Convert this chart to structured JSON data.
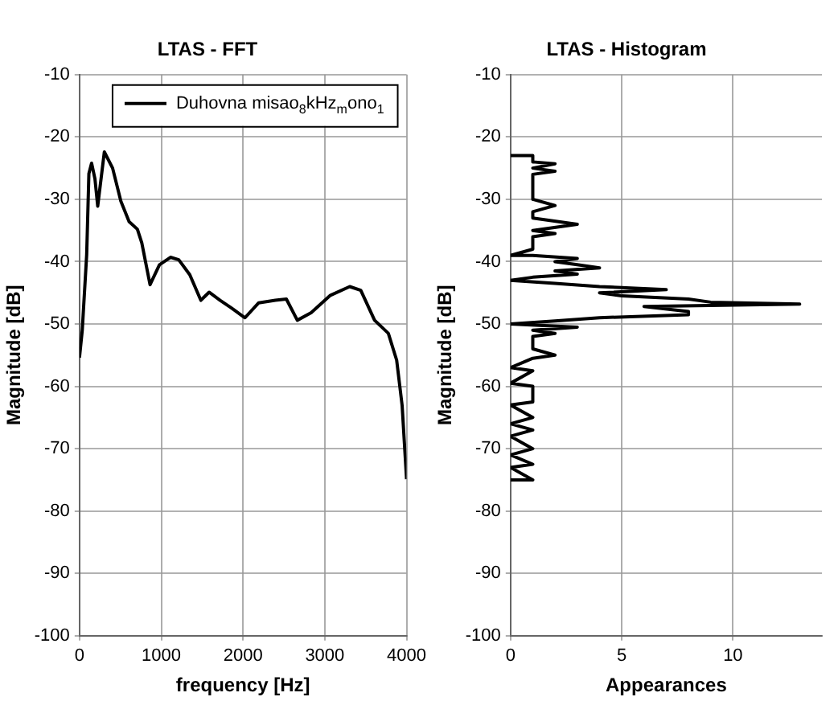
{
  "chart_data": [
    {
      "type": "line",
      "title": "LTAS - FFT",
      "xlabel": "frequency [Hz]",
      "ylabel": "Magnitude [dB]",
      "xlim": [
        0,
        4000
      ],
      "xticks": [
        0,
        1000,
        2000,
        3000,
        4000
      ],
      "ylim": [
        -100,
        -10
      ],
      "yticks": [
        -100,
        -90,
        -80,
        -70,
        -60,
        -50,
        -40,
        -30,
        -20,
        -10
      ],
      "grid": true,
      "legend": "top right",
      "marker": "none",
      "line_style": "solid",
      "series": [
        {
          "name": "Duhovna misao$_{8}$kHz$_{m}$ono$_{1}$",
          "color": "#000000",
          "x": [
            0,
            34,
            88,
            115,
            148,
            189,
            223,
            304,
            405,
            506,
            607,
            708,
            762,
            863,
            978,
            1113,
            1214,
            1349,
            1484,
            1585,
            1720,
            1855,
            2024,
            2192,
            2395,
            2530,
            2664,
            2833,
            3069,
            3305,
            3440,
            3609,
            3777,
            3879,
            3946,
            4000
          ],
          "values": [
            -55.4,
            -51,
            -38.9,
            -25.9,
            -24.2,
            -26.7,
            -31.1,
            -22.4,
            -25,
            -30.3,
            -33.6,
            -34.8,
            -37,
            -43.7,
            -40.5,
            -39.3,
            -39.7,
            -42.1,
            -46.2,
            -44.9,
            -46.2,
            -47.4,
            -49,
            -46.6,
            -46.2,
            -46,
            -49.4,
            -48.2,
            -45.4,
            -44,
            -44.6,
            -49.4,
            -51.5,
            -55.8,
            -63.1,
            -74.9
          ]
        }
      ]
    },
    {
      "type": "line",
      "title": "LTAS - Histogram",
      "xlabel": "Appearances",
      "ylabel": "Magnitude [dB]",
      "xlim": [
        0,
        14
      ],
      "xticks": [
        0,
        5,
        10
      ],
      "ylim": [
        -100,
        -10
      ],
      "yticks": [
        -100,
        -90,
        -80,
        -70,
        -60,
        -50,
        -40,
        -30,
        -20,
        -10
      ],
      "grid": true,
      "marker": "none",
      "line_style": "solid",
      "series": [
        {
          "color": "#000000",
          "x": [
            0,
            1,
            1,
            2,
            1,
            2,
            1,
            1,
            2,
            1,
            1,
            3,
            1,
            2,
            1,
            1,
            0,
            1,
            3,
            2,
            3,
            4,
            2,
            3,
            1,
            0,
            2,
            4,
            7,
            4,
            5,
            8,
            9,
            13,
            6,
            8,
            8,
            4,
            2,
            0,
            3,
            1,
            2,
            1,
            1,
            2,
            1,
            0,
            1,
            0,
            1,
            1,
            0,
            1,
            0,
            1,
            0,
            1,
            0,
            1,
            0,
            1,
            0
          ],
          "values": [
            -23,
            -23,
            -24,
            -24.3,
            -25,
            -25.5,
            -26,
            -30,
            -31,
            -32,
            -33,
            -34,
            -35,
            -35.5,
            -36,
            -38,
            -39,
            -39,
            -39.5,
            -40,
            -40.5,
            -41,
            -41.5,
            -42,
            -42.5,
            -43,
            -43.5,
            -44,
            -44.5,
            -45,
            -45.5,
            -46,
            -46.5,
            -46.8,
            -47.2,
            -48,
            -48.5,
            -49,
            -49.5,
            -50,
            -50.5,
            -51,
            -51.5,
            -52,
            -54,
            -55,
            -55.5,
            -57,
            -57.5,
            -59.5,
            -60,
            -62.5,
            -63,
            -65,
            -66,
            -67,
            -68,
            -70,
            -71,
            -72.5,
            -73,
            -75,
            -75
          ]
        }
      ]
    }
  ]
}
